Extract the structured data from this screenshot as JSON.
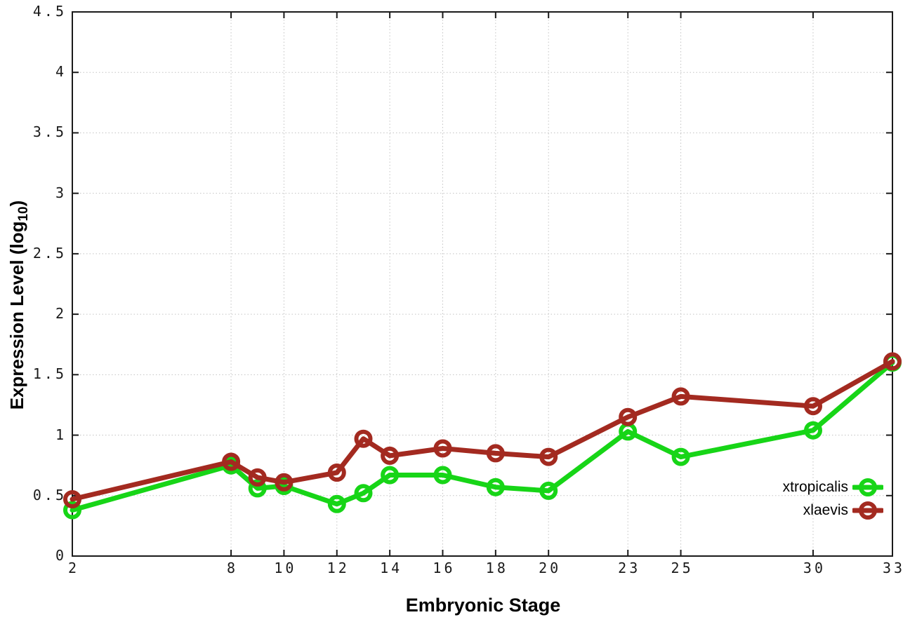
{
  "figure": {
    "background": "#ffffff",
    "axis_color": "#1a1a1a",
    "grid_color": "#c3c3c3"
  },
  "chart_data": {
    "type": "line",
    "title": "",
    "xlabel": "Embryonic Stage",
    "ylabel": "Expression Level (log10)",
    "ylabel_parts": {
      "prefix": "Expression Level (log",
      "sub": "10",
      "suffix": ")"
    },
    "xlim": [
      2,
      33
    ],
    "ylim": [
      0,
      4.5
    ],
    "x_ticks": [
      2,
      8,
      10,
      12,
      14,
      16,
      18,
      20,
      23,
      25,
      30,
      33
    ],
    "y_ticks": [
      0,
      0.5,
      1,
      1.5,
      2,
      2.5,
      3,
      3.5,
      4,
      4.5
    ],
    "grid": true,
    "legend_position": "inside-bottom-right",
    "x": [
      2,
      8,
      9,
      10,
      12,
      13,
      14,
      16,
      18,
      20,
      23,
      25,
      30,
      33
    ],
    "series": [
      {
        "name": "xtropicalis",
        "color": "#17d517",
        "values": [
          0.38,
          0.75,
          0.56,
          0.58,
          0.43,
          0.52,
          0.67,
          0.67,
          0.57,
          0.54,
          1.03,
          0.82,
          1.04,
          1.6
        ]
      },
      {
        "name": "xlaevis",
        "color": "#a32a20",
        "values": [
          0.47,
          0.78,
          0.65,
          0.61,
          0.69,
          0.97,
          0.83,
          0.89,
          0.85,
          0.82,
          1.15,
          1.32,
          1.24,
          1.61
        ]
      }
    ]
  }
}
